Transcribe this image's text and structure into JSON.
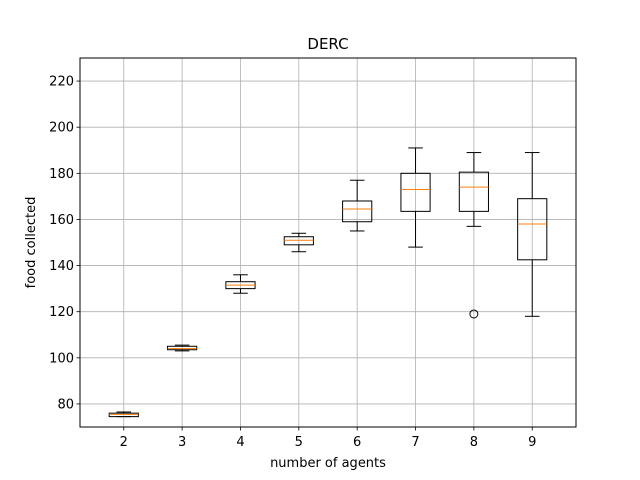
{
  "chart_data": {
    "type": "box",
    "title": "DERC",
    "xlabel": "number of agents",
    "ylabel": "food collected",
    "ylim": [
      70,
      230
    ],
    "yticks": [
      80,
      100,
      120,
      140,
      160,
      180,
      200,
      220
    ],
    "grid": true,
    "colors": {
      "box": "#000000",
      "median": "#ff7f0e",
      "grid": "#b0b0b0"
    },
    "categories": [
      "2",
      "3",
      "4",
      "5",
      "6",
      "7",
      "8",
      "9"
    ],
    "boxes": [
      {
        "x": "2",
        "whisker_low": 74.5,
        "q1": 74.5,
        "median": 75.5,
        "q3": 76,
        "whisker_high": 76.5,
        "outliers": []
      },
      {
        "x": "3",
        "whisker_low": 103,
        "q1": 103.5,
        "median": 104,
        "q3": 105,
        "whisker_high": 105.5,
        "outliers": []
      },
      {
        "x": "4",
        "whisker_low": 128,
        "q1": 130,
        "median": 131.5,
        "q3": 133,
        "whisker_high": 136,
        "outliers": []
      },
      {
        "x": "5",
        "whisker_low": 146,
        "q1": 149,
        "median": 151,
        "q3": 152.5,
        "whisker_high": 154,
        "outliers": []
      },
      {
        "x": "6",
        "whisker_low": 155,
        "q1": 159,
        "median": 164.5,
        "q3": 168,
        "whisker_high": 177,
        "outliers": []
      },
      {
        "x": "7",
        "whisker_low": 148,
        "q1": 163.5,
        "median": 173,
        "q3": 180,
        "whisker_high": 191,
        "outliers": []
      },
      {
        "x": "8",
        "whisker_low": 157,
        "q1": 163.5,
        "median": 174,
        "q3": 180.5,
        "whisker_high": 189,
        "outliers": [
          119
        ]
      },
      {
        "x": "9",
        "whisker_low": 118,
        "q1": 142.5,
        "median": 158,
        "q3": 169,
        "whisker_high": 189,
        "outliers": []
      }
    ]
  }
}
